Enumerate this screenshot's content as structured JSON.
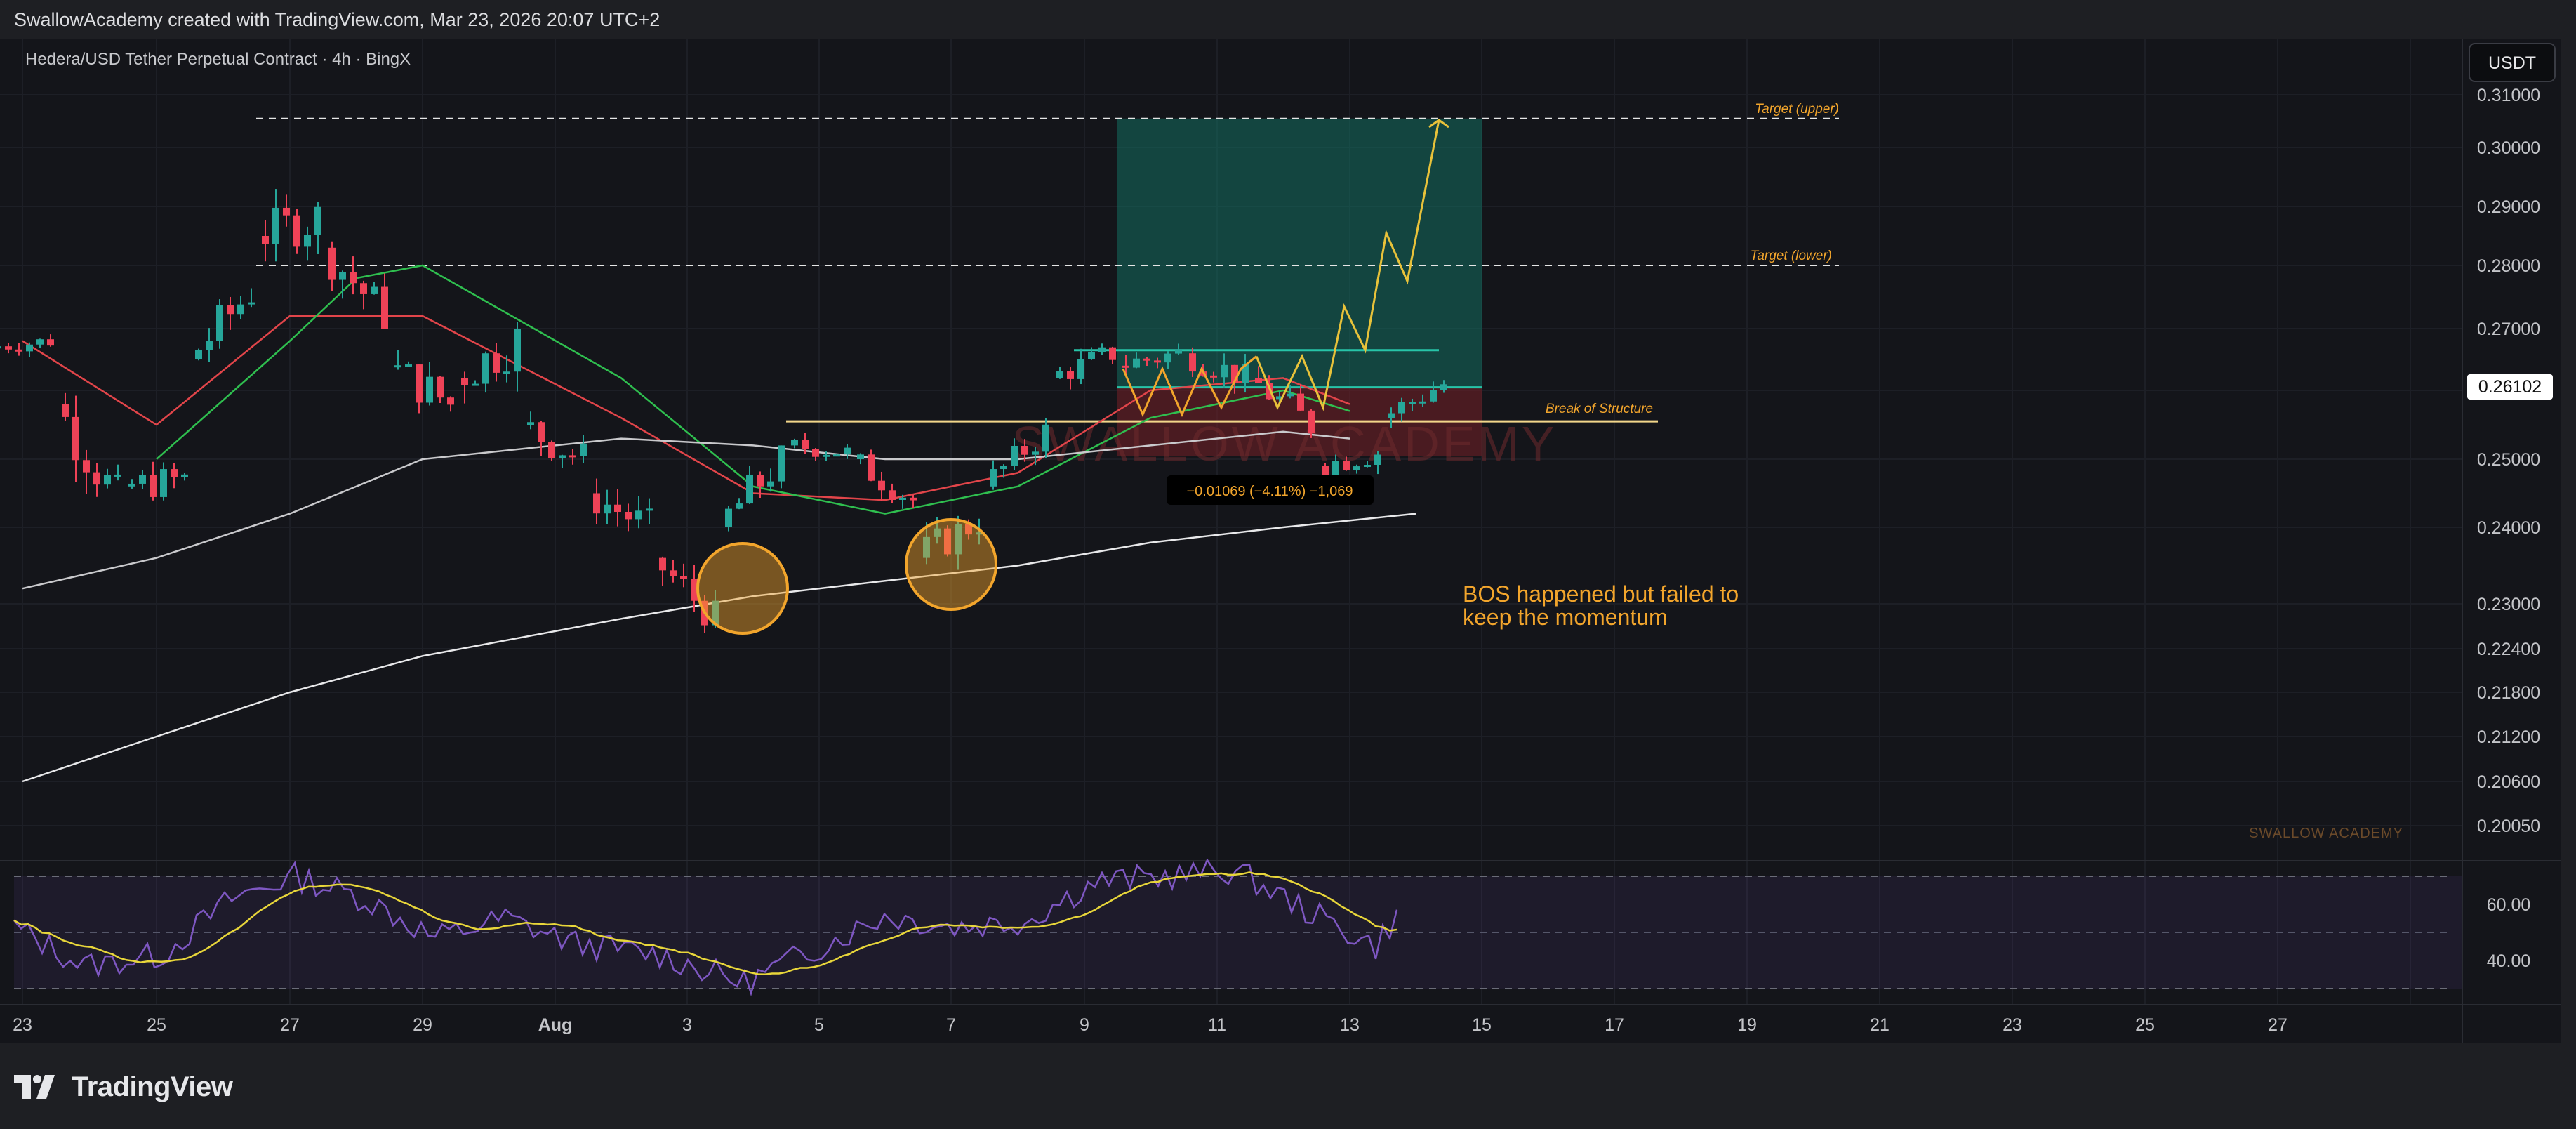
{
  "header": {
    "attribution": "SwallowAcademy created with TradingView.com, Mar 23, 2026 20:07 UTC+2"
  },
  "chart_data": {
    "type": "candlestick",
    "title": "Hedera/USD Tether Perpetual Contract · 4h · BingX",
    "currency_button": "USDT",
    "price_scale": {
      "tick_labels": [
        "0.31000",
        "0.30000",
        "0.29000",
        "0.28000",
        "0.27000",
        "0.26000",
        "0.25000",
        "0.24000",
        "0.23000",
        "0.22400",
        "0.21800",
        "0.21200",
        "0.20600",
        "0.20050"
      ],
      "ylim": [
        0.2005,
        0.31
      ]
    },
    "current_price": "0.26102",
    "time_axis": {
      "labels": [
        "23",
        "25",
        "27",
        "29",
        "Aug",
        "3",
        "5",
        "7",
        "9",
        "11",
        "13",
        "15",
        "17",
        "19",
        "21",
        "23",
        "25",
        "27"
      ]
    },
    "price_series": {
      "ohlc_approx": [
        [
          "Jul 23",
          0.267,
          0.27,
          0.262,
          0.268
        ],
        [
          "Jul 24",
          0.258,
          0.262,
          0.24,
          0.244
        ],
        [
          "Jul 25",
          0.246,
          0.252,
          0.238,
          0.247
        ],
        [
          "Jul 26",
          0.265,
          0.282,
          0.262,
          0.276
        ],
        [
          "Jul 27",
          0.285,
          0.302,
          0.279,
          0.288
        ],
        [
          "Jul 28",
          0.283,
          0.29,
          0.27,
          0.272
        ],
        [
          "Jul 29",
          0.264,
          0.274,
          0.255,
          0.258
        ],
        [
          "Jul 30",
          0.262,
          0.273,
          0.25,
          0.268
        ],
        [
          "Jul 31",
          0.255,
          0.264,
          0.248,
          0.25
        ],
        [
          "Aug 1",
          0.245,
          0.252,
          0.236,
          0.24
        ],
        [
          "Aug 2",
          0.236,
          0.239,
          0.225,
          0.228
        ],
        [
          "Aug 3",
          0.24,
          0.252,
          0.235,
          0.25
        ],
        [
          "Aug 4",
          0.252,
          0.256,
          0.248,
          0.251
        ],
        [
          "Aug 5",
          0.25,
          0.252,
          0.24,
          0.244
        ],
        [
          "Aug 6",
          0.236,
          0.244,
          0.23,
          0.241
        ],
        [
          "Aug 7",
          0.246,
          0.256,
          0.244,
          0.254
        ],
        [
          "Aug 8",
          0.262,
          0.27,
          0.258,
          0.266
        ],
        [
          "Aug 9",
          0.264,
          0.27,
          0.258,
          0.266
        ],
        [
          "Aug 10",
          0.266,
          0.272,
          0.259,
          0.262
        ],
        [
          "Aug 11",
          0.262,
          0.266,
          0.252,
          0.255
        ],
        [
          "Aug 12",
          0.249,
          0.258,
          0.247,
          0.251
        ],
        [
          "Aug 13",
          0.256,
          0.264,
          0.253,
          0.261
        ]
      ]
    },
    "moving_averages": [
      {
        "color": "#e2454a",
        "points": [
          [
            "Jul 23",
            0.268
          ],
          [
            "Jul 25",
            0.255
          ],
          [
            "Jul 27",
            0.272
          ],
          [
            "Jul 29",
            0.272
          ],
          [
            "Aug 1",
            0.256
          ],
          [
            "Aug 3",
            0.245
          ],
          [
            "Aug 5",
            0.244
          ],
          [
            "Aug 7",
            0.248
          ],
          [
            "Aug 9",
            0.26
          ],
          [
            "Aug 11",
            0.262
          ],
          [
            "Aug 12",
            0.258
          ]
        ]
      },
      {
        "color": "#2fbf4f",
        "points": [
          [
            "Jul 25",
            0.25
          ],
          [
            "Jul 27",
            0.268
          ],
          [
            "Jul 28",
            0.278
          ],
          [
            "Jul 29",
            0.28
          ],
          [
            "Aug 1",
            0.262
          ],
          [
            "Aug 3",
            0.246
          ],
          [
            "Aug 5",
            0.242
          ],
          [
            "Aug 7",
            0.246
          ],
          [
            "Aug 9",
            0.256
          ],
          [
            "Aug 11",
            0.26
          ],
          [
            "Aug 12",
            0.257
          ]
        ]
      },
      {
        "color": "#c9c9cc",
        "points": [
          [
            "Jul 23",
            0.232
          ],
          [
            "Jul 25",
            0.236
          ],
          [
            "Jul 27",
            0.242
          ],
          [
            "Jul 29",
            0.25
          ],
          [
            "Aug 1",
            0.253
          ],
          [
            "Aug 3",
            0.252
          ],
          [
            "Aug 5",
            0.25
          ],
          [
            "Aug 7",
            0.25
          ],
          [
            "Aug 9",
            0.252
          ],
          [
            "Aug 11",
            0.254
          ],
          [
            "Aug 12",
            0.253
          ]
        ]
      },
      {
        "color": "#e8e8ea",
        "points": [
          [
            "Jul 23",
            0.206
          ],
          [
            "Jul 25",
            0.212
          ],
          [
            "Jul 27",
            0.218
          ],
          [
            "Jul 29",
            0.223
          ],
          [
            "Aug 1",
            0.228
          ],
          [
            "Aug 3",
            0.231
          ],
          [
            "Aug 5",
            0.233
          ],
          [
            "Aug 7",
            0.235
          ],
          [
            "Aug 9",
            0.238
          ],
          [
            "Aug 11",
            0.24
          ],
          [
            "Aug 13",
            0.242
          ]
        ]
      }
    ],
    "annotations": {
      "target_upper": "Target (upper)",
      "target_lower": "Target (lower)",
      "bos_label": "Break of Structure",
      "measure_label": "−0.01069 (−4.11%) −1,069",
      "comment_line1": "BOS happened but failed to",
      "comment_line2": "keep the momentum",
      "watermark": "SWALLOW ACADEMY",
      "corner_watermark": "SWALLOW ACADEMY"
    },
    "levels": {
      "target_upper": 0.3055,
      "target_lower": 0.28,
      "bos": 0.2555,
      "range_top": 0.2665,
      "range_mid": 0.2605
    },
    "rsi": {
      "tick_labels": [
        "60.00",
        "40.00"
      ],
      "upper_band": 70,
      "lower_band": 30,
      "midline": 50
    },
    "colors": {
      "up": "#26a69a",
      "down": "#ef4257",
      "accent": "#f2a52c",
      "profit_zone": "#136e60",
      "loss_zone": "#6e1f27",
      "rsi_line": "#7e57c2",
      "rsi_signal": "#e8d63a"
    }
  },
  "footer": {
    "brand": "TradingView",
    "logo_icon": "tradingview-logo-icon"
  }
}
